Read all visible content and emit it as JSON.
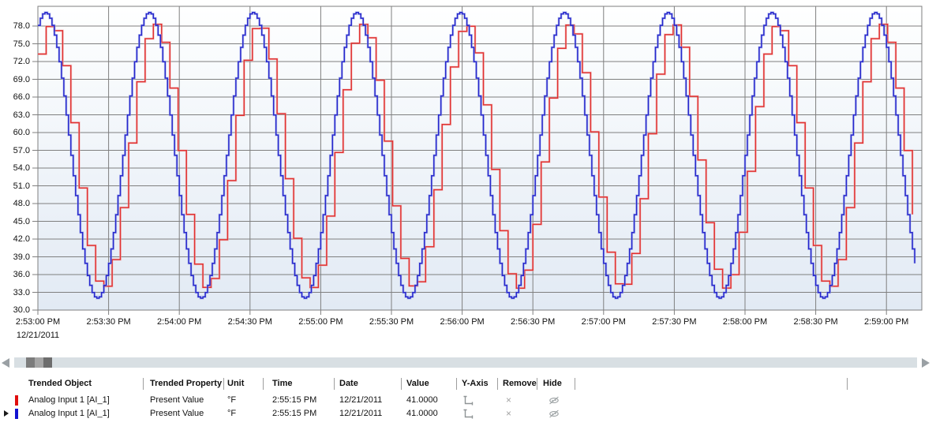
{
  "chart_data": {
    "type": "line",
    "title": "",
    "x_date": "12/21/2011",
    "x_tick_interval_s": 30,
    "x_tick_labels": [
      "2:53:00 PM",
      "2:53:30 PM",
      "2:54:00 PM",
      "2:54:30 PM",
      "2:55:00 PM",
      "2:55:30 PM",
      "2:56:00 PM",
      "2:56:30 PM",
      "2:57:00 PM",
      "2:57:30 PM",
      "2:58:00 PM",
      "2:58:30 PM",
      "2:59:00 PM"
    ],
    "y_tick_labels": [
      "78.0",
      "75.0",
      "72.0",
      "69.0",
      "66.0",
      "63.0",
      "60.0",
      "57.0",
      "54.0",
      "51.0",
      "48.0",
      "45.0",
      "42.0",
      "39.0",
      "36.0",
      "33.0",
      "30.0"
    ],
    "ylim": [
      30,
      81.3
    ],
    "y_tick_step": 3,
    "grid": true,
    "gridline_color": "#7f7f7f",
    "plot_bg_gradient": [
      "#feffff",
      "#e2eaf4"
    ],
    "waveform": {
      "shape": "stepped-sine",
      "period_s": 44,
      "first_peak_s": 3,
      "duration_s": 372
    },
    "series": [
      {
        "name": "Analog Input 1 [AI_1] red pen",
        "color": "#e03030",
        "halo": "#f3b6b6",
        "sample_interval_s": 3.5,
        "lag_s": 1.8,
        "midline": 56.0,
        "amplitude": 22.3,
        "observed_min": 33.7,
        "observed_max": 78.3
      },
      {
        "name": "Analog Input 1 [AI_1] blue pen",
        "color": "#2626cc",
        "halo": "#9aa7e9",
        "sample_interval_s": 1,
        "lag_s": 0,
        "midline": 56.15,
        "amplitude": 24.15,
        "observed_min": 32.0,
        "observed_max": 80.3
      }
    ]
  },
  "scrollbar": {
    "left_arrow_icon": "left-triangle",
    "right_arrow_icon": "right-triangle"
  },
  "table": {
    "columns": [
      {
        "id": "trended_object",
        "label": "Trended Object"
      },
      {
        "id": "trended_property",
        "label": "Trended Property"
      },
      {
        "id": "unit",
        "label": "Unit"
      },
      {
        "id": "time",
        "label": "Time"
      },
      {
        "id": "date",
        "label": "Date"
      },
      {
        "id": "value",
        "label": "Value"
      },
      {
        "id": "y_axis",
        "label": "Y-Axis"
      },
      {
        "id": "remove",
        "label": "Remove"
      },
      {
        "id": "hide",
        "label": "Hide"
      }
    ],
    "icons": {
      "y_axis": "axis-corner-icon",
      "remove": "×",
      "hide": "eye-slash-icon"
    },
    "rows": [
      {
        "pen_color": "#e00d0d",
        "selected": false,
        "trended_object": "Analog Input 1 [AI_1]",
        "trended_property": "Present Value",
        "unit": "°F",
        "time": "2:55:15 PM",
        "date": "12/21/2011",
        "value": "41.0000"
      },
      {
        "pen_color": "#1212d0",
        "selected": true,
        "trended_object": "Analog Input 1 [AI_1]",
        "trended_property": "Present Value",
        "unit": "°F",
        "time": "2:55:15 PM",
        "date": "12/21/2011",
        "value": "41.0000"
      }
    ]
  }
}
